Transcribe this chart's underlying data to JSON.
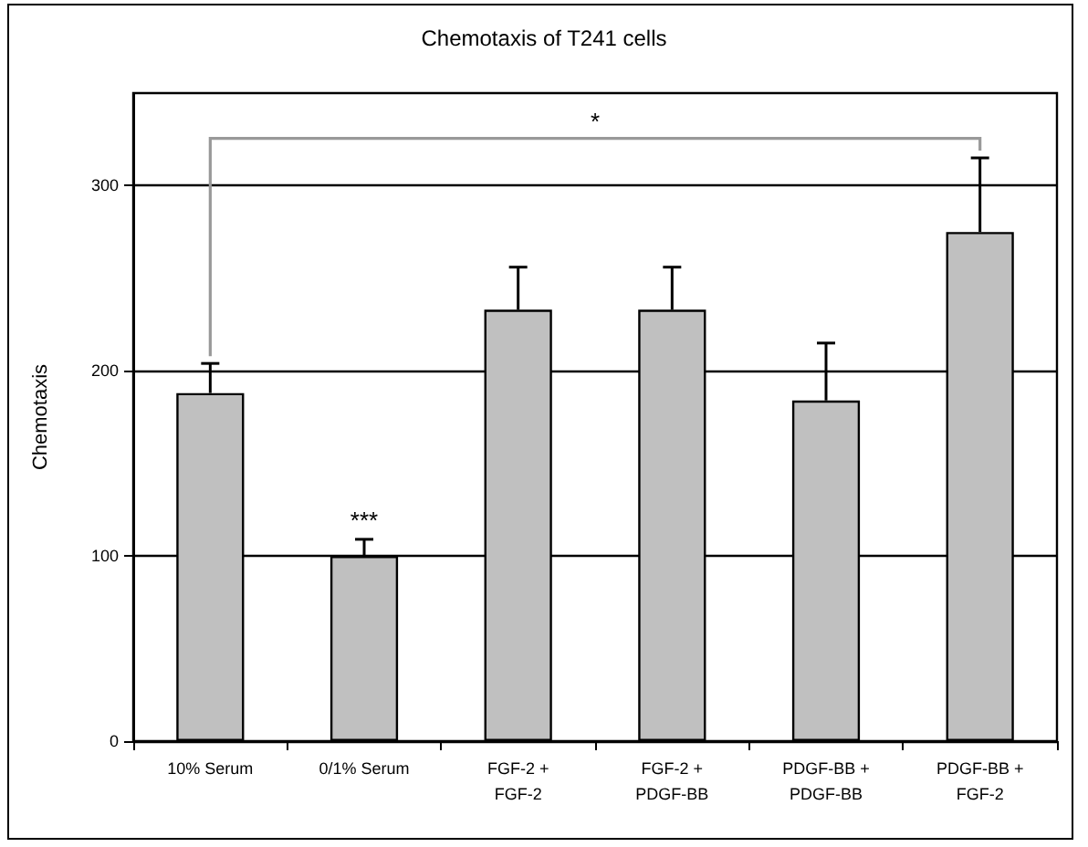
{
  "chart_data": {
    "type": "bar",
    "title": "Chemotaxis of T241 cells",
    "ylabel": "Chemotaxis",
    "categories": [
      "10% Serum",
      "0/1% Serum",
      "FGF-2 +\nFGF-2",
      "FGF-2 +\nPDGF-BB",
      "PDGF-BB +\nPDGF-BB",
      "PDGF-BB +\nFGF-2"
    ],
    "values": [
      188,
      100,
      233,
      233,
      184,
      275
    ],
    "errors": [
      [
        188,
        204
      ],
      [
        100,
        109
      ],
      [
        233,
        256
      ],
      [
        233,
        256
      ],
      [
        184,
        215
      ],
      [
        275,
        315
      ]
    ],
    "color": "#c0c0c0",
    "ylim": [
      0,
      350
    ],
    "yticks": [
      0,
      100,
      200,
      300
    ],
    "grid": "y",
    "annotations": [
      "*",
      {
        "text": "***",
        "x": "0/1% Serum",
        "y": 113
      }
    ]
  }
}
